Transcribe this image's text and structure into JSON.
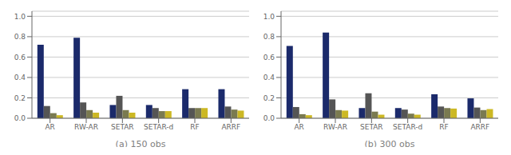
{
  "chart_data": [
    {
      "type": "bar",
      "xlabel": "(a) 150 obs",
      "categories": [
        "AR",
        "RW-AR",
        "SETAR",
        "SETAR-d",
        "RF",
        "ARRF"
      ],
      "series": [
        {
          "color": "#1b2a6b",
          "values": [
            0.72,
            0.79,
            0.13,
            0.13,
            0.285,
            0.285
          ]
        },
        {
          "color": "#555555",
          "values": [
            0.12,
            0.155,
            0.22,
            0.1,
            0.1,
            0.115
          ]
        },
        {
          "color": "#7a7a50",
          "values": [
            0.05,
            0.08,
            0.08,
            0.07,
            0.1,
            0.085
          ]
        },
        {
          "color": "#ccb824",
          "values": [
            0.03,
            0.055,
            0.055,
            0.07,
            0.1,
            0.075
          ]
        }
      ],
      "ylim": [
        0,
        1.05
      ],
      "yticks": [
        {
          "value": 0,
          "label": "0.0"
        },
        0.2,
        0.4,
        0.6,
        0.8,
        {
          "value": 1,
          "label": "1.0"
        }
      ],
      "grid": true
    },
    {
      "type": "bar",
      "xlabel": "(b) 300 obs",
      "categories": [
        "AR",
        "RW-AR",
        "SETAR",
        "SETAR-d",
        "RF",
        "ARRF"
      ],
      "series": [
        {
          "color": "#1b2a6b",
          "values": [
            0.71,
            0.84,
            0.1,
            0.1,
            0.235,
            0.195
          ]
        },
        {
          "color": "#555555",
          "values": [
            0.11,
            0.185,
            0.245,
            0.085,
            0.115,
            0.105
          ]
        },
        {
          "color": "#7a7a50",
          "values": [
            0.04,
            0.08,
            0.065,
            0.045,
            0.1,
            0.08
          ]
        },
        {
          "color": "#ccb824",
          "values": [
            0.03,
            0.075,
            0.035,
            0.035,
            0.095,
            0.09
          ]
        }
      ],
      "ylim": [
        0,
        1.05
      ],
      "yticks": [
        {
          "value": 0,
          "label": "0.0"
        },
        0.2,
        0.4,
        0.6,
        0.8,
        {
          "value": 1,
          "label": "1.0"
        }
      ],
      "grid": true
    }
  ]
}
